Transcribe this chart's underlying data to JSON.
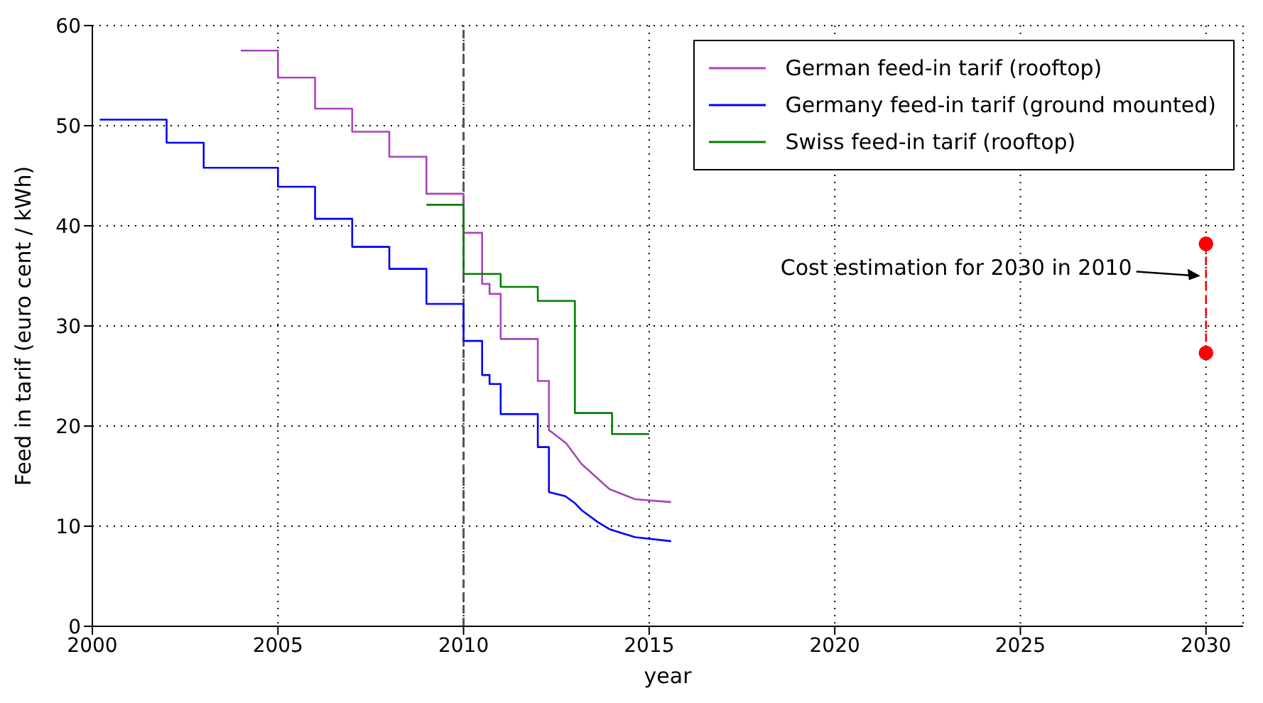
{
  "chart_data": {
    "type": "line",
    "xlabel": "year",
    "ylabel": "Feed in tarif (euro cent / kWh)",
    "xlim": [
      2000,
      2031
    ],
    "xticks": [
      2000,
      2005,
      2010,
      2015,
      2020,
      2025,
      2030
    ],
    "ylim": [
      0,
      60
    ],
    "yticks": [
      0,
      10,
      20,
      30,
      40,
      50,
      60
    ],
    "grid": true,
    "legend": "top right",
    "marker": "none",
    "line_style": "solid",
    "series": [
      {
        "name": "German feed-in tarif (rooftop)",
        "color": "#aa44bb",
        "x": [
          2004,
          2005,
          2005,
          2006,
          2006,
          2007,
          2007,
          2008,
          2008,
          2009,
          2009,
          2010,
          2010,
          2010.5,
          2010.5,
          2010.7,
          2010.7,
          2011,
          2011,
          2012,
          2012,
          2012.3,
          2012.3,
          2012.76,
          2013.18,
          2013.93,
          2014.62,
          2015.59
        ],
        "values": [
          57.5,
          57.5,
          54.8,
          54.8,
          51.7,
          51.7,
          49.4,
          49.4,
          46.9,
          46.9,
          43.2,
          43.2,
          39.3,
          39.3,
          34.2,
          34.2,
          33.2,
          33.2,
          28.7,
          28.7,
          24.5,
          24.5,
          19.6,
          18.3,
          16.2,
          13.7,
          12.7,
          12.4
        ]
      },
      {
        "name": "Germany feed-in tarif (ground mounted)",
        "color": "#0000ff",
        "x": [
          2000.2,
          2002,
          2002,
          2003,
          2003,
          2005,
          2005,
          2006,
          2006,
          2007,
          2007,
          2008,
          2008,
          2009,
          2009,
          2010,
          2010,
          2010.5,
          2010.5,
          2010.7,
          2010.7,
          2011,
          2011,
          2012,
          2012,
          2012.3,
          2012.3,
          2012.74,
          2013,
          2013.18,
          2013.62,
          2013.93,
          2014.62,
          2015.59
        ],
        "values": [
          50.6,
          50.6,
          48.3,
          48.3,
          45.8,
          45.8,
          43.9,
          43.9,
          40.7,
          40.7,
          37.9,
          37.9,
          35.7,
          35.7,
          32.2,
          32.2,
          28.5,
          28.5,
          25.1,
          25.1,
          24.2,
          24.2,
          21.2,
          21.2,
          17.9,
          17.9,
          13.4,
          13.0,
          12.3,
          11.6,
          10.4,
          9.7,
          8.9,
          8.5
        ]
      },
      {
        "name": "Swiss feed-in tarif (rooftop)",
        "color": "#008000",
        "x": [
          2009,
          2010,
          2010,
          2011,
          2011,
          2012,
          2012,
          2013,
          2013,
          2014,
          2014,
          2015
        ],
        "values": [
          42.1,
          42.1,
          35.2,
          35.2,
          33.9,
          33.9,
          32.5,
          32.5,
          21.3,
          21.3,
          19.2,
          19.2
        ]
      },
      {
        "color": "#ff0000",
        "marker": "circle",
        "line_style": "dashed",
        "x": [
          2030,
          2030
        ],
        "values": [
          38.2,
          27.3
        ]
      }
    ],
    "ref_lines": [
      {
        "axis": "x",
        "value": 2010,
        "color": "#555555",
        "line_style": "dashed"
      }
    ],
    "annotations": [
      {
        "text": "Cost estimation for 2030 in 2010",
        "x": 2030,
        "y": 35
      }
    ]
  }
}
